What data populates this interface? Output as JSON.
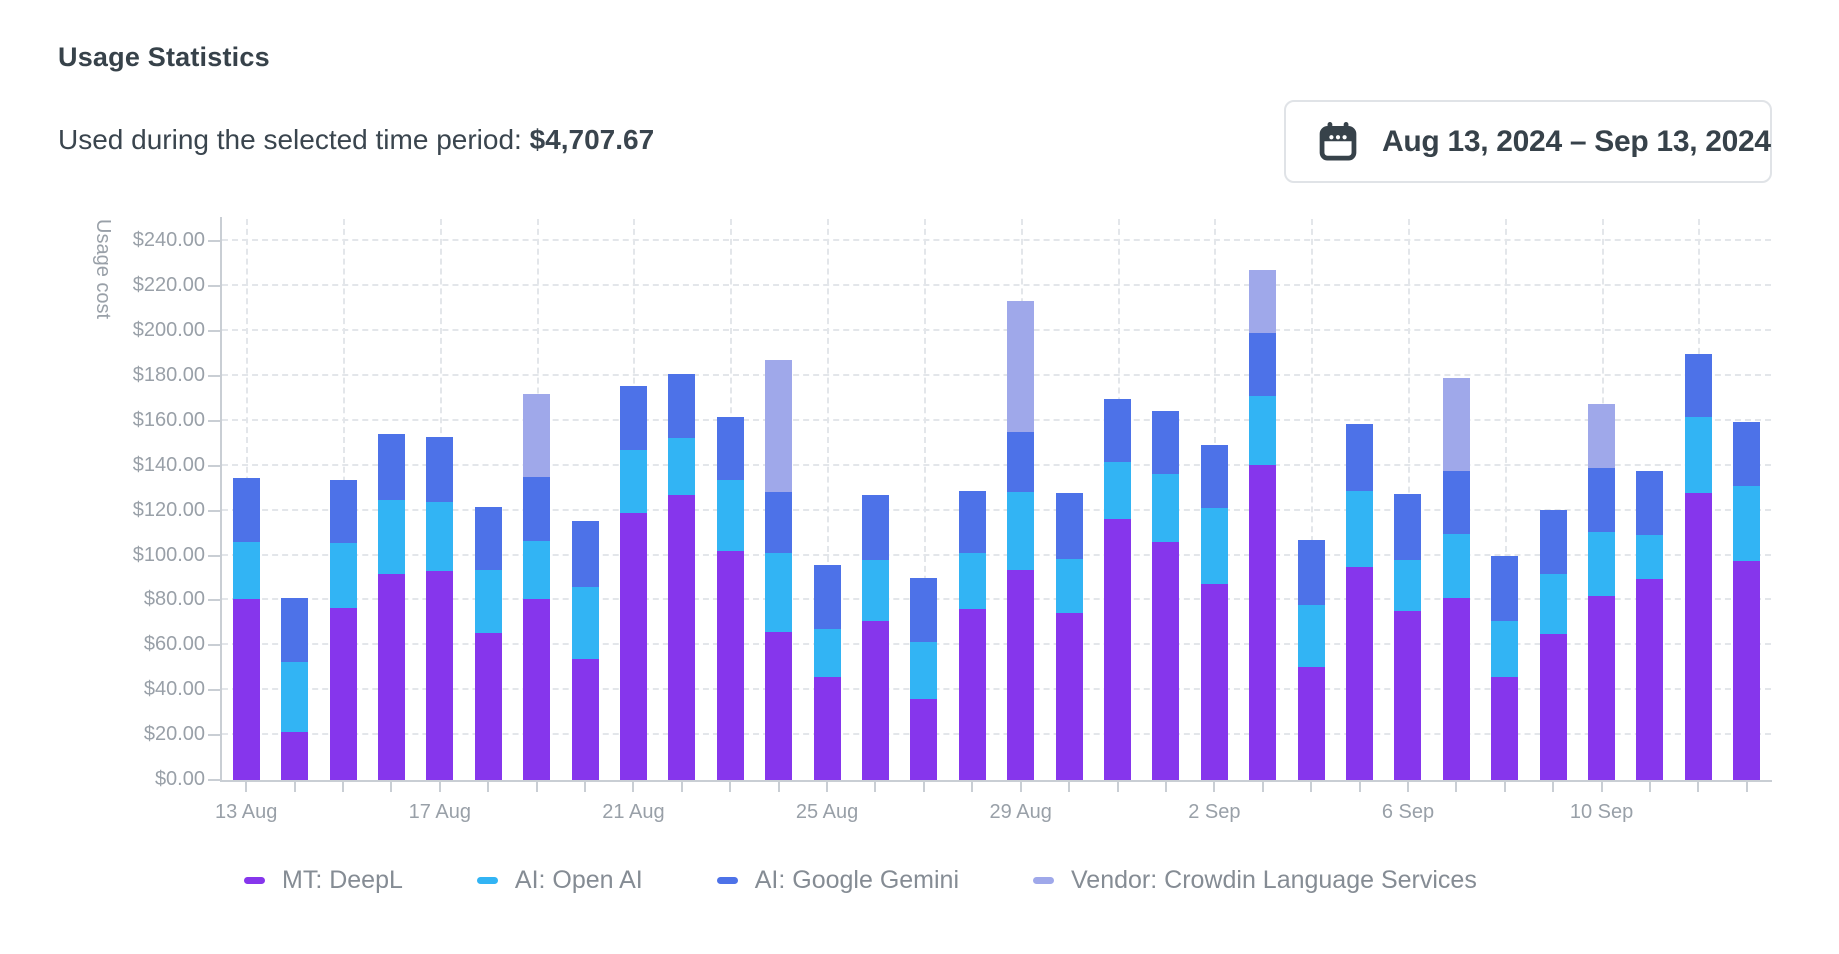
{
  "header": {
    "title": "Usage Statistics",
    "subtitle_label": "Used during the selected time period:",
    "subtitle_value": "$4,707.67"
  },
  "date_picker": {
    "icon": "calendar-icon",
    "range_label": "Aug 13, 2024 – Sep 13, 2024"
  },
  "colors": {
    "deepl_purple": "#8636EC",
    "openai_cyan": "#32B4F4",
    "gemini_blue": "#4D72E8",
    "crowdin_lavender": "#9FA8EA",
    "axis_line": "#C9CED4",
    "grid_line": "#E3E6EA",
    "tick_text": "#99A0A8",
    "legend_text": "#858C94",
    "heading_text": "#37424A"
  },
  "chart_data": {
    "type": "bar",
    "stacked": true,
    "ylabel": "Usage cost",
    "xlabel": "",
    "ylim": [
      0,
      250
    ],
    "y_tick_interval": 20,
    "grid": true,
    "legend_position": "bottom",
    "y_tick_labels": [
      "$0.00",
      "$20.00",
      "$40.00",
      "$60.00",
      "$80.00",
      "$100.00",
      "$120.00",
      "$140.00",
      "$160.00",
      "$180.00",
      "$200.00",
      "$220.00",
      "$240.00"
    ],
    "categories": [
      "13 Aug",
      "14 Aug",
      "15 Aug",
      "16 Aug",
      "17 Aug",
      "18 Aug",
      "19 Aug",
      "20 Aug",
      "21 Aug",
      "22 Aug",
      "23 Aug",
      "24 Aug",
      "25 Aug",
      "26 Aug",
      "27 Aug",
      "28 Aug",
      "29 Aug",
      "30 Aug",
      "31 Aug",
      "1 Sep",
      "2 Sep",
      "3 Sep",
      "4 Sep",
      "5 Sep",
      "6 Sep",
      "7 Sep",
      "8 Sep",
      "9 Sep",
      "10 Sep",
      "11 Sep",
      "12 Sep",
      "13 Sep"
    ],
    "x_tick_labels_shown": [
      "13 Aug",
      "17 Aug",
      "21 Aug",
      "25 Aug",
      "29 Aug",
      "2 Sep",
      "6 Sep",
      "10 Sep"
    ],
    "x_tick_label_every": 4,
    "series": [
      {
        "name": "MT: DeepL",
        "color": "#8636EC",
        "values": [
          80.5,
          21.5,
          76.5,
          92,
          93,
          65.5,
          80.5,
          54,
          119,
          127,
          102,
          66,
          46,
          71,
          36,
          76,
          93.5,
          74.5,
          116.5,
          106,
          87.5,
          140.5,
          50.5,
          95,
          75.5,
          81,
          46,
          65,
          82,
          89.5,
          128,
          97.5
        ]
      },
      {
        "name": "AI: Open AI",
        "color": "#32B4F4",
        "values": [
          25.5,
          31,
          29,
          33,
          31,
          28,
          26,
          32,
          28,
          25.5,
          31.5,
          35,
          21.5,
          27,
          25.5,
          25,
          35,
          24,
          25,
          30.5,
          33.5,
          30.5,
          27.5,
          34,
          22.5,
          28.5,
          25,
          27,
          28.5,
          19.5,
          34,
          33.5
        ]
      },
      {
        "name": "AI: Google Gemini",
        "color": "#4D72E8",
        "values": [
          28.5,
          28.5,
          28,
          29,
          29,
          28,
          28.5,
          29.5,
          28.5,
          28.5,
          28.5,
          27.5,
          28.5,
          29,
          28.5,
          28,
          26.5,
          29.5,
          28.5,
          28,
          28.5,
          28,
          29,
          29.5,
          29.5,
          28,
          29,
          28.5,
          28.5,
          28.5,
          28,
          28.5
        ]
      },
      {
        "name": "Vendor: Crowdin Language Services",
        "color": "#9FA8EA",
        "values": [
          0,
          0,
          0,
          0,
          0,
          0,
          37,
          0,
          0,
          0,
          0,
          58.5,
          0,
          0,
          0,
          0,
          58.5,
          0,
          0,
          0,
          0,
          28.5,
          0,
          0,
          0,
          41.5,
          0,
          0,
          28.5,
          0,
          0,
          0
        ]
      }
    ]
  }
}
